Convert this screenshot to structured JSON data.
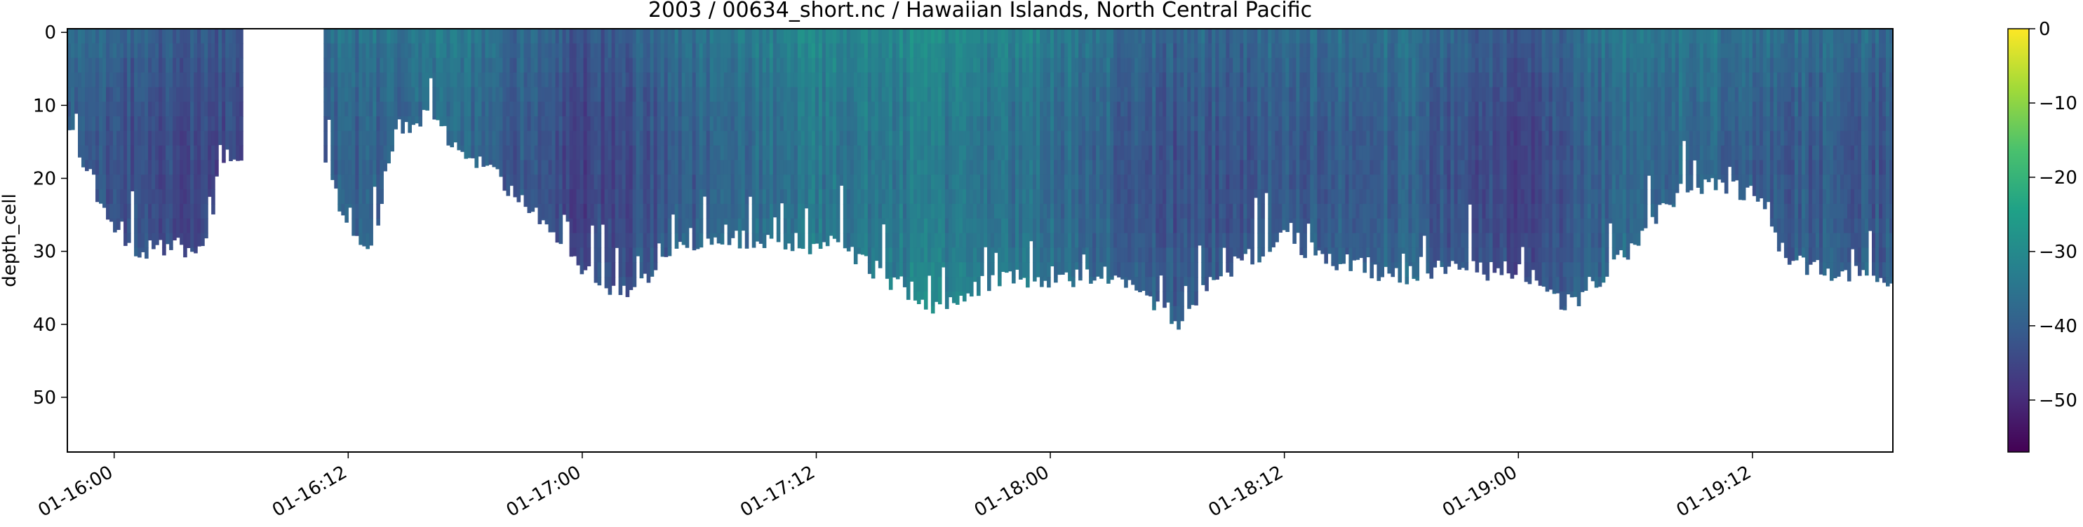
{
  "chart_data": {
    "type": "heatmap",
    "title": "2003 / 00634_short.nc / Hawaiian Islands, North Central Pacific",
    "xlabel": "",
    "ylabel": "depth_cell",
    "x_ticks": [
      "01-16:00",
      "01-16:12",
      "01-17:00",
      "01-17:12",
      "01-18:00",
      "01-18:12",
      "01-19:00",
      "01-19:12"
    ],
    "y_ticks": [
      0,
      10,
      20,
      30,
      40,
      50
    ],
    "ylim": [
      57.5,
      -0.5
    ],
    "xlim_hours": [
      -0.2,
      7.6
    ],
    "colorbar": {
      "ticks": [
        0,
        -10,
        -20,
        -30,
        -40,
        -50
      ],
      "range": [
        -57,
        0
      ],
      "colormap": "viridis"
    },
    "colormap_stops": [
      "#440154",
      "#46327e",
      "#365c8d",
      "#277f8e",
      "#1fa187",
      "#4ac16d",
      "#a0da39",
      "#fde725"
    ],
    "valid_depth_profile": {
      "hours": [
        -0.2,
        0.0,
        0.1,
        0.25,
        0.4,
        0.45,
        0.55,
        0.6,
        0.9,
        1.0,
        1.1,
        1.2,
        1.35,
        1.5,
        1.7,
        2.0,
        2.2,
        2.4,
        2.55,
        2.7,
        2.9,
        3.1,
        3.3,
        3.5,
        3.7,
        3.95,
        4.15,
        4.3,
        4.4,
        4.55,
        4.75,
        5.0,
        5.25,
        5.5,
        5.7,
        5.95,
        6.05,
        6.2,
        6.35,
        6.5,
        6.55,
        6.7,
        6.9,
        7.05,
        7.15,
        7.3,
        7.4,
        7.5,
        7.6
      ],
      "max_depth_cell": [
        13,
        28,
        30,
        30,
        30,
        17,
        17,
        null,
        18,
        28,
        30,
        14,
        12,
        17,
        22,
        33,
        37,
        30,
        29,
        29,
        29,
        30,
        34,
        38,
        35,
        34,
        34,
        34,
        36,
        40,
        33,
        29,
        32,
        34,
        33,
        33,
        34,
        38,
        34,
        30,
        27,
        22,
        21,
        24,
        32,
        33,
        34,
        33,
        34
      ]
    },
    "mean_value_by_hour": {
      "hours": [
        -0.2,
        0.5,
        1.0,
        1.5,
        2.0,
        2.5,
        3.0,
        3.5,
        4.0,
        4.5,
        5.0,
        5.5,
        6.0,
        6.5,
        7.0,
        7.6
      ],
      "value": [
        -38,
        -41,
        -36,
        -34,
        -42,
        -36,
        -31,
        -30,
        -33,
        -39,
        -37,
        -36,
        -42,
        -33,
        -36,
        -38
      ]
    }
  }
}
